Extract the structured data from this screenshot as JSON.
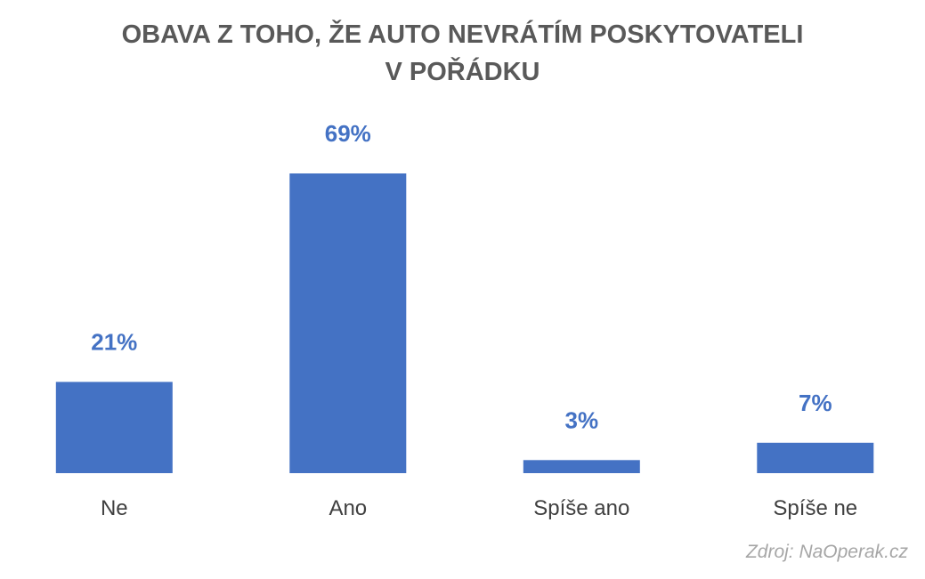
{
  "chart_data": {
    "type": "bar",
    "title_lines": [
      "OBAVA Z TOHO, ŽE AUTO NEVRÁTÍM POSKYTOVATELI",
      "V POŘÁDKU"
    ],
    "categories": [
      "Ne",
      "Ano",
      "Spíše ano",
      "Spíše ne"
    ],
    "values": [
      21,
      69,
      3,
      7
    ],
    "data_labels": [
      "21%",
      "69%",
      "3%",
      "7%"
    ],
    "ylim": [
      0,
      69
    ],
    "grid": false,
    "legend": false,
    "bar_color": "#4472c4",
    "label_color": "#4472c4"
  },
  "source": "Zdroj: NaOperak.cz"
}
